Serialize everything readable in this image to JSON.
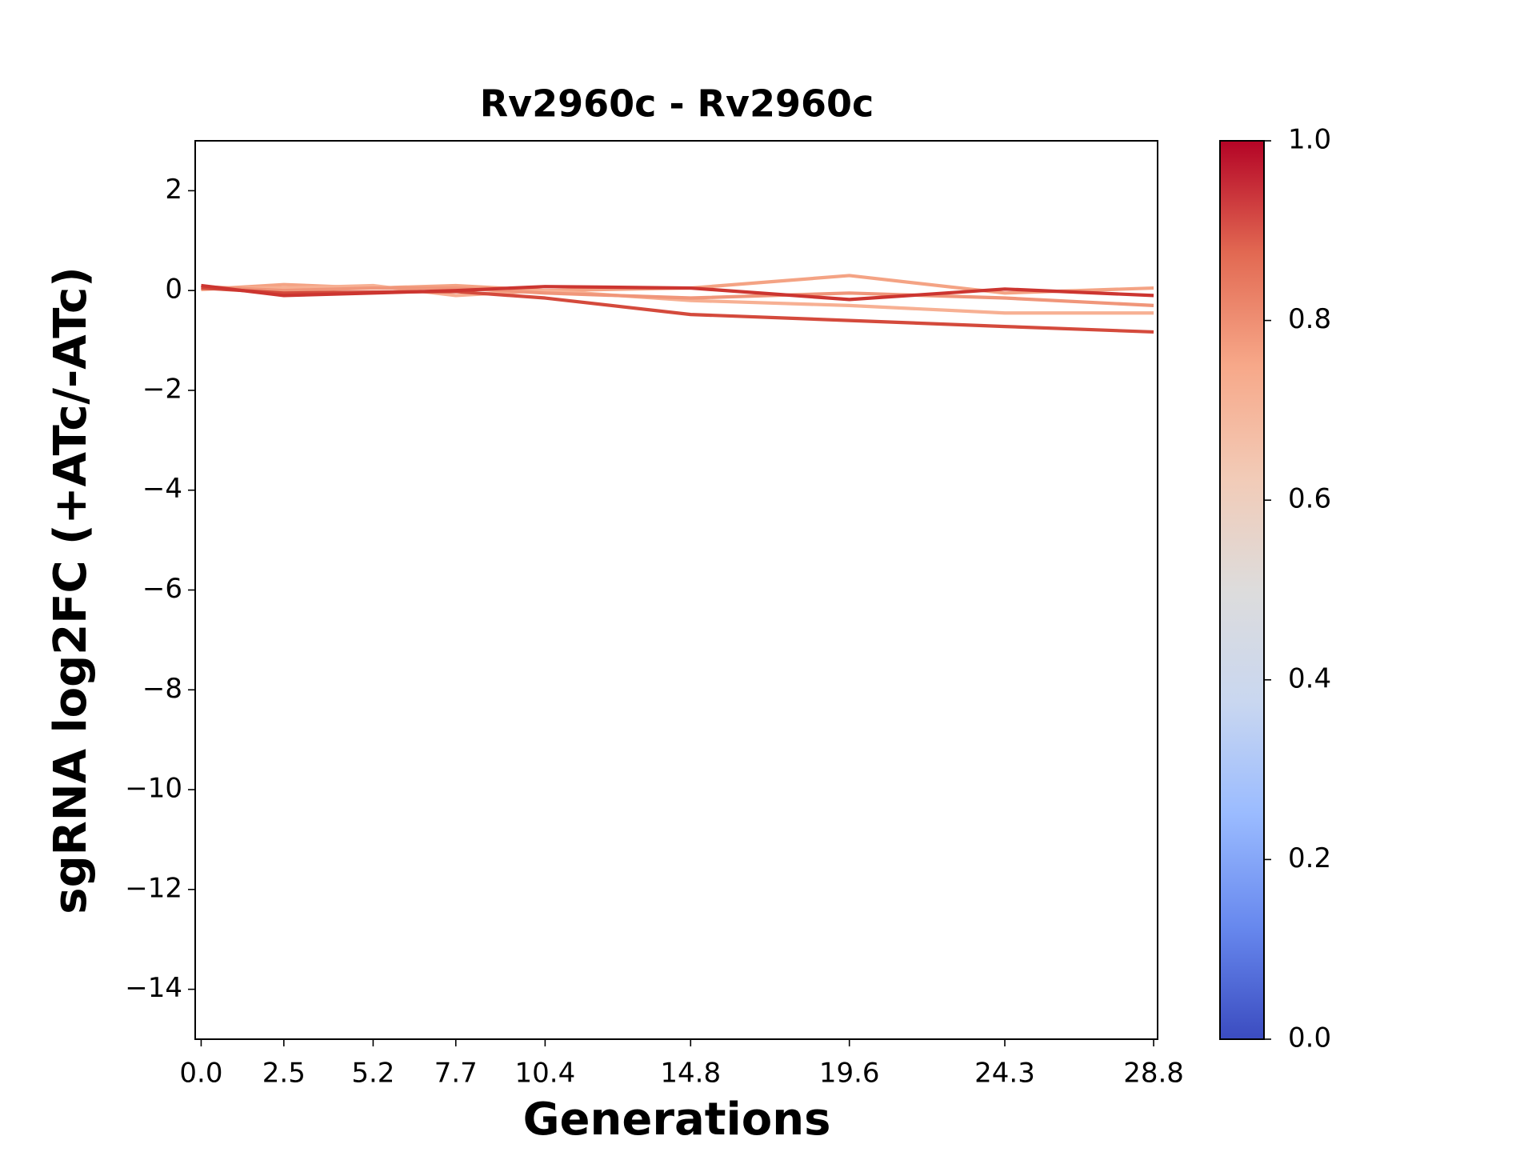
{
  "chart_data": {
    "type": "line",
    "title": "Rv2960c - Rv2960c",
    "x_label": "Generations",
    "y_label": "sgRNA log2FC (+ATc/-ATc)",
    "x": [
      0,
      2.5,
      5.2,
      7.7,
      10.4,
      14.8,
      19.6,
      24.3,
      28.8
    ],
    "xlim": [
      -0.18,
      28.92
    ],
    "xticks": [
      {
        "value": 0,
        "label": "0.0"
      },
      2.5,
      5.2,
      7.7,
      10.4,
      14.8,
      19.6,
      24.3,
      28.8
    ],
    "ylim": [
      -15,
      3
    ],
    "yticks": [
      {
        "value": 2,
        "label": "2"
      },
      {
        "value": 0,
        "label": "0"
      },
      {
        "value": -2,
        "label": "−2"
      },
      {
        "value": -4,
        "label": "−4"
      },
      {
        "value": -6,
        "label": "−6"
      },
      {
        "value": -8,
        "label": "−8"
      },
      {
        "value": -10,
        "label": "−10"
      },
      {
        "value": -12,
        "label": "−12"
      },
      {
        "value": -14,
        "label": "−14"
      }
    ],
    "grid": false,
    "series": [
      {
        "color": "#f4a384",
        "values": [
          0.02,
          0.12,
          0.05,
          0.1,
          0.0,
          0.05,
          0.3,
          -0.05,
          0.05
        ]
      },
      {
        "color": "#f7b093",
        "values": [
          0.05,
          0.05,
          0.1,
          -0.1,
          0.0,
          -0.2,
          -0.3,
          -0.45,
          -0.45
        ]
      },
      {
        "color": "#f0967a",
        "values": [
          0.08,
          0.0,
          0.05,
          0.05,
          -0.05,
          -0.15,
          -0.05,
          -0.15,
          -0.3
        ]
      },
      {
        "color": "#d44a3c",
        "values": [
          0.05,
          -0.05,
          -0.03,
          -0.02,
          -0.15,
          -0.48,
          -0.6,
          -0.72,
          -0.83
        ]
      },
      {
        "color": "#cc3530",
        "values": [
          0.1,
          -0.1,
          -0.05,
          0.0,
          0.08,
          0.05,
          -0.18,
          0.03,
          -0.1
        ]
      }
    ],
    "colorbar": {
      "lim": [
        0,
        1
      ],
      "ticks": [
        {
          "value": 0,
          "label": "0.0"
        },
        0.2,
        0.4,
        0.6,
        0.8,
        {
          "value": 1,
          "label": "1.0"
        }
      ],
      "colors": [
        "#3b4cc0",
        "#6788ee",
        "#9abbff",
        "#c9d7f0",
        "#dddcdc",
        "#f2cbb7",
        "#f7a889",
        "#e26952",
        "#b40426"
      ]
    }
  }
}
